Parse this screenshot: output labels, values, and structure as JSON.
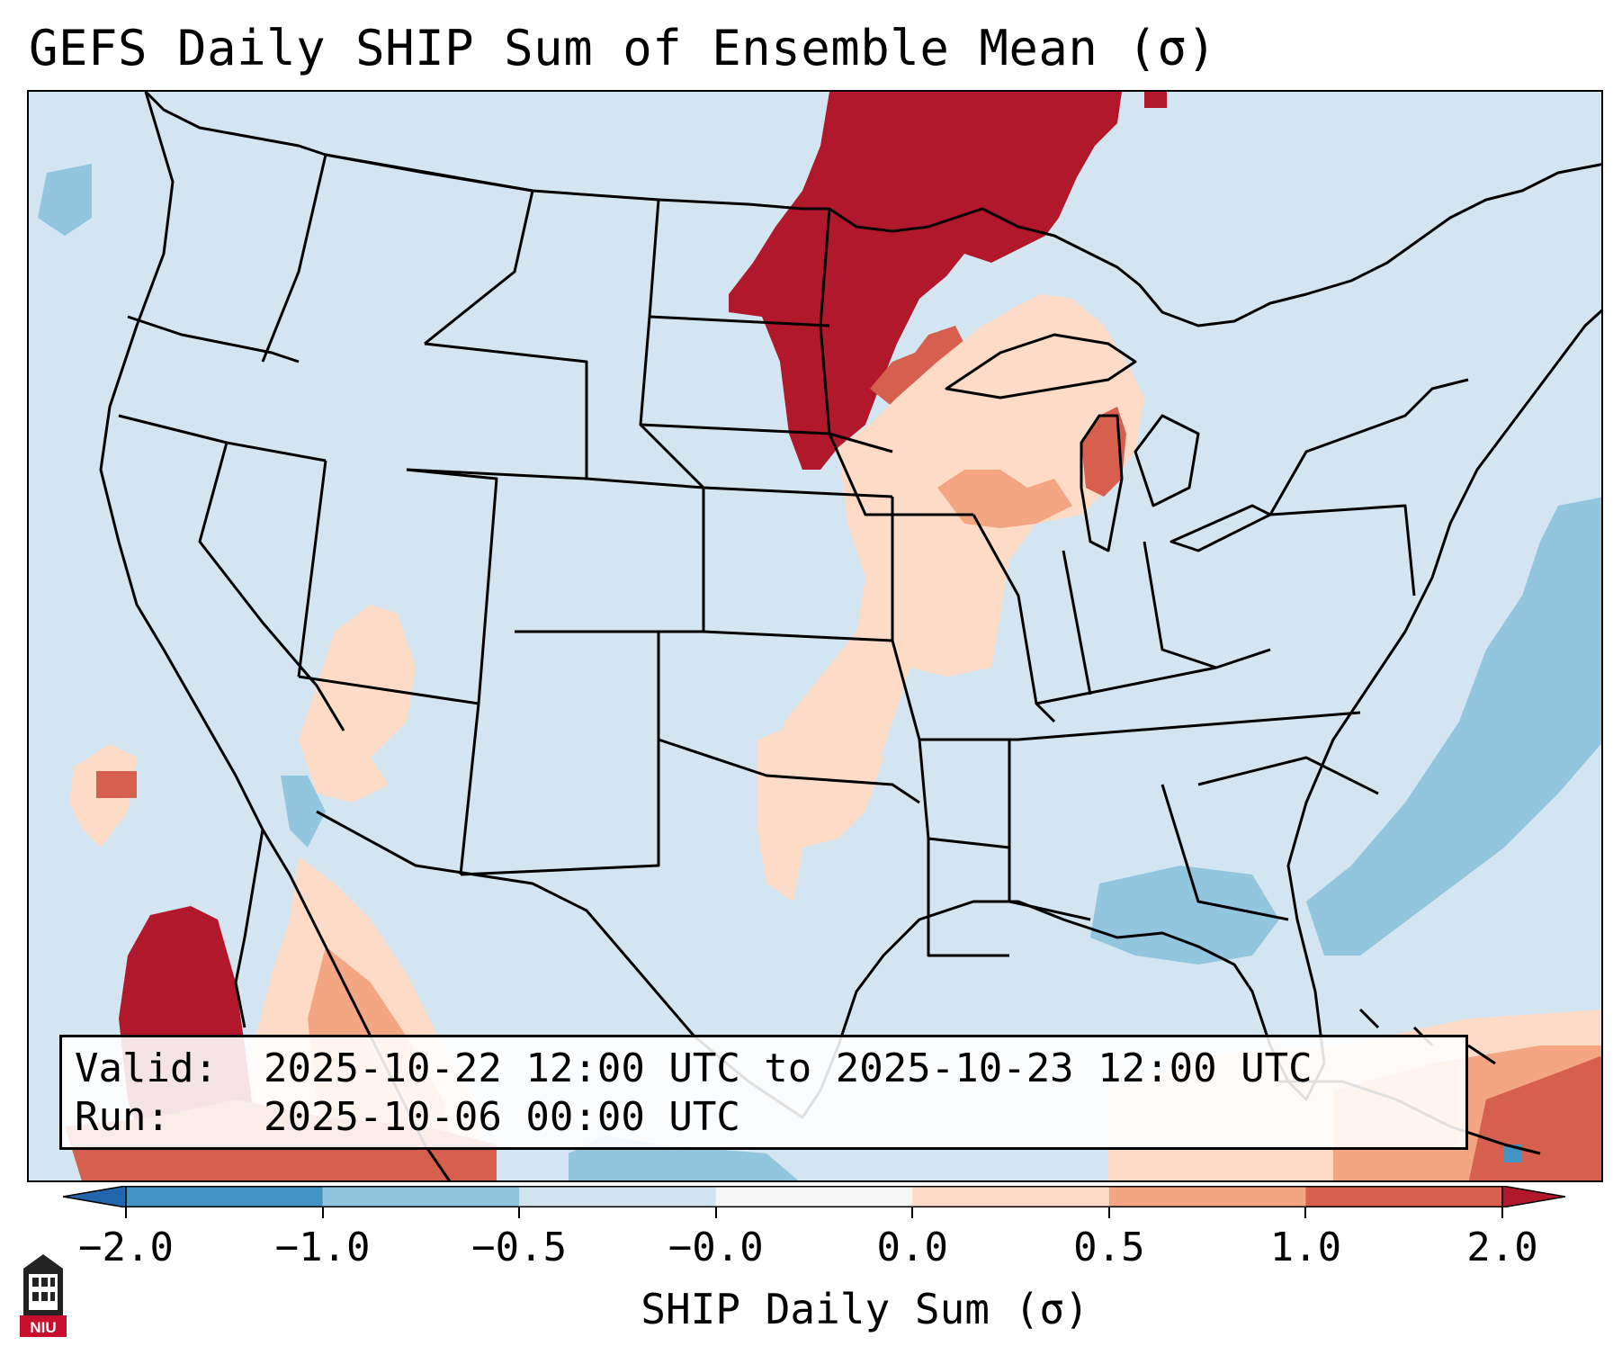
{
  "title": "GEFS Daily SHIP Sum of Ensemble Mean (σ)",
  "info": {
    "valid_key": "Valid:",
    "valid_value": "2025-10-22 12:00 UTC to 2025-10-23 12:00 UTC",
    "run_key": "Run:",
    "run_value": "2025-10-06 00:00 UTC"
  },
  "colorbar": {
    "label": "SHIP Daily Sum (σ)",
    "tick_labels": [
      "−2.0",
      "−1.0",
      "−0.5",
      "−0.0",
      "0.0",
      "0.5",
      "1.0",
      "2.0"
    ],
    "bins": [
      {
        "range": "-2.0 to -1.0",
        "color": "#4393c3"
      },
      {
        "range": "-1.0 to -0.5",
        "color": "#92c5de"
      },
      {
        "range": "-0.5 to -0.0",
        "color": "#d1e5f0"
      },
      {
        "range": "-0.0 to 0.0",
        "color": "#f7f7f7"
      },
      {
        "range": "0.0 to 0.5",
        "color": "#fddbc7"
      },
      {
        "range": "0.5 to 1.0",
        "color": "#f4a582"
      },
      {
        "range": "1.0 to 2.0",
        "color": "#d6604d"
      }
    ],
    "extend_low_color": "#2166ac",
    "extend_high_color": "#b2182b"
  },
  "colors": {
    "background_anomaly": "#d1e5f0",
    "strong_positive": "#b2182b",
    "positive": "#d6604d",
    "moderate_positive": "#f4a582",
    "weak_positive": "#fddbc7",
    "moderate_negative": "#92c5de",
    "negative": "#4393c3"
  },
  "logo": {
    "icon": "university-tower-icon",
    "text": "NIU"
  }
}
